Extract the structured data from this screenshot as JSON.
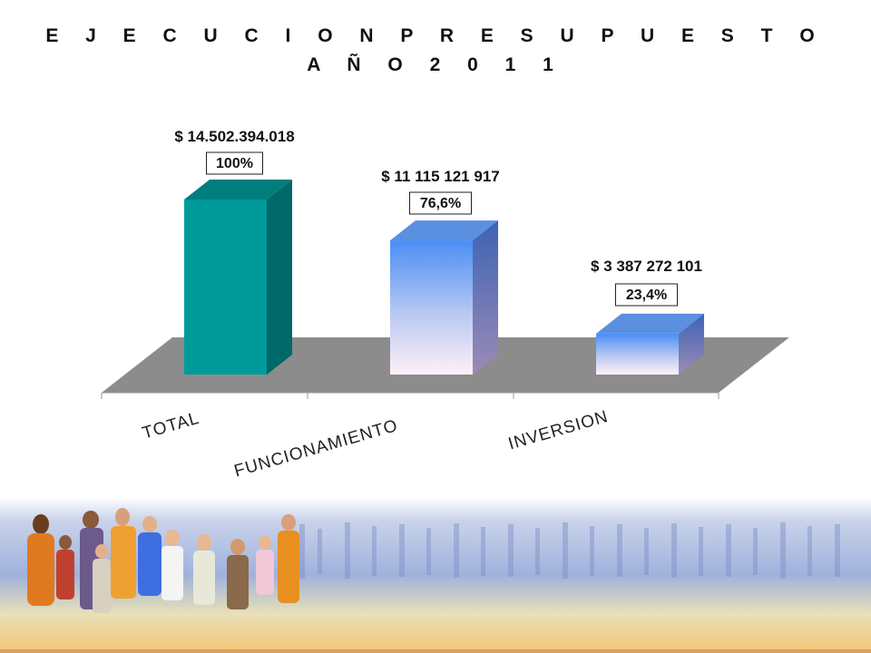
{
  "chart_data": {
    "type": "bar",
    "title_line1": "E J E C U C I O N   P R E S U P U E S T O",
    "title_line2": "A Ñ O   2 0 1 1",
    "categories": [
      "TOTAL",
      "FUNCIONAMIENTO",
      "INVERSION"
    ],
    "values": [
      14502394018,
      11115121917,
      3387272101
    ],
    "value_labels": [
      "$ 14.502.394.018",
      "$ 11 115 121 917",
      "$ 3 387 272 101"
    ],
    "percent_labels": [
      "100%",
      "76,6%",
      "23,4%"
    ],
    "percent_values": [
      100,
      76.6,
      23.4
    ],
    "colors": {
      "total_front": "#009a9a",
      "total_top": "#007d7d",
      "total_side": "#006868",
      "blue_top": "#5b8fe0",
      "blue_side": "#3f66b0",
      "floor": "#8c8c8c"
    },
    "legend": "none",
    "grid": false
  }
}
